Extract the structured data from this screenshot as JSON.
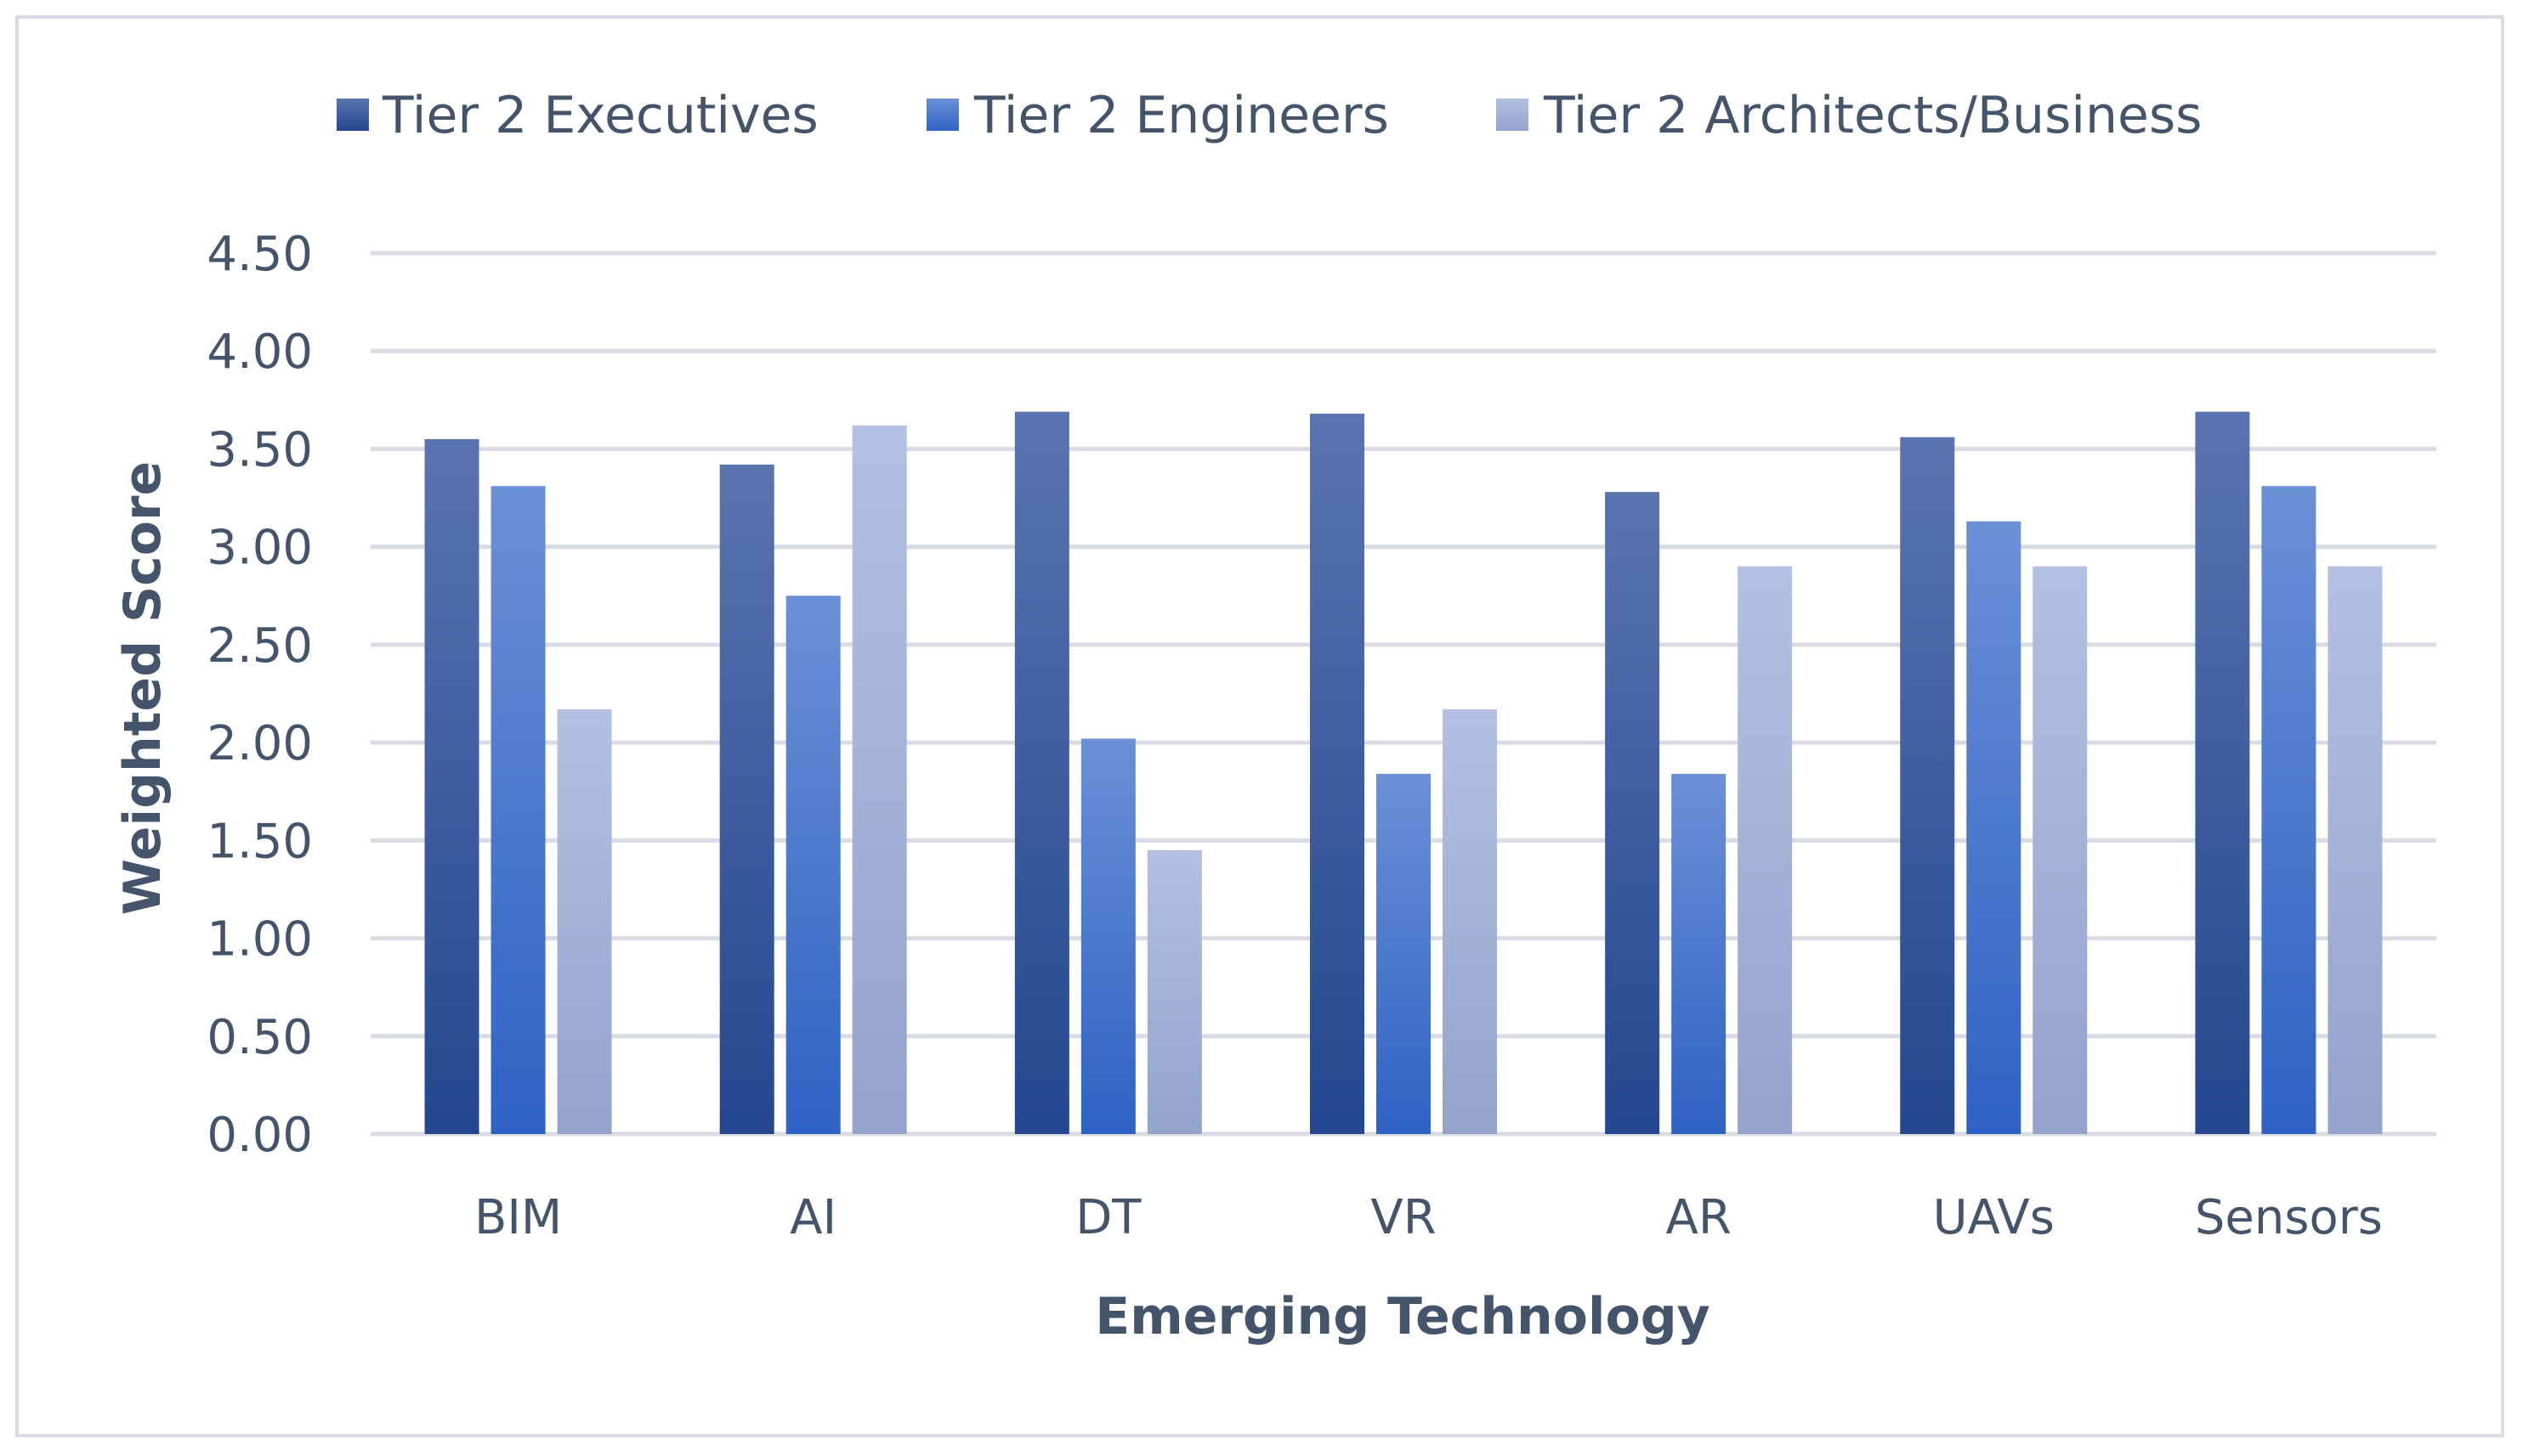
{
  "chart_data": {
    "type": "bar",
    "title": "",
    "xlabel": "Emerging Technology",
    "ylabel": "Weighted Score",
    "categories": [
      "BIM",
      "AI",
      "DT",
      "VR",
      "AR",
      "UAVs",
      "Sensors"
    ],
    "series": [
      {
        "name": "Tier 2 Executives",
        "color_top": "#5a74b0",
        "color_bottom": "#23478f",
        "values": [
          3.55,
          3.42,
          3.69,
          3.68,
          3.28,
          3.56,
          3.69
        ]
      },
      {
        "name": "Tier 2 Engineers",
        "color_top": "#6b90d6",
        "color_bottom": "#2e62c4",
        "values": [
          3.31,
          2.75,
          2.02,
          1.84,
          1.84,
          3.13,
          3.31
        ]
      },
      {
        "name": "Tier 2 Architects/Business",
        "color_top": "#b3c0e3",
        "color_bottom": "#94a3cc",
        "values": [
          2.17,
          3.62,
          1.45,
          2.17,
          2.9,
          2.9,
          2.9
        ]
      }
    ],
    "yticks": [
      "0.00",
      "0.50",
      "1.00",
      "1.50",
      "2.00",
      "2.50",
      "3.00",
      "3.50",
      "4.00",
      "4.50"
    ],
    "ylim": [
      0,
      4.5
    ],
    "grid": true,
    "legend_position": "top"
  }
}
